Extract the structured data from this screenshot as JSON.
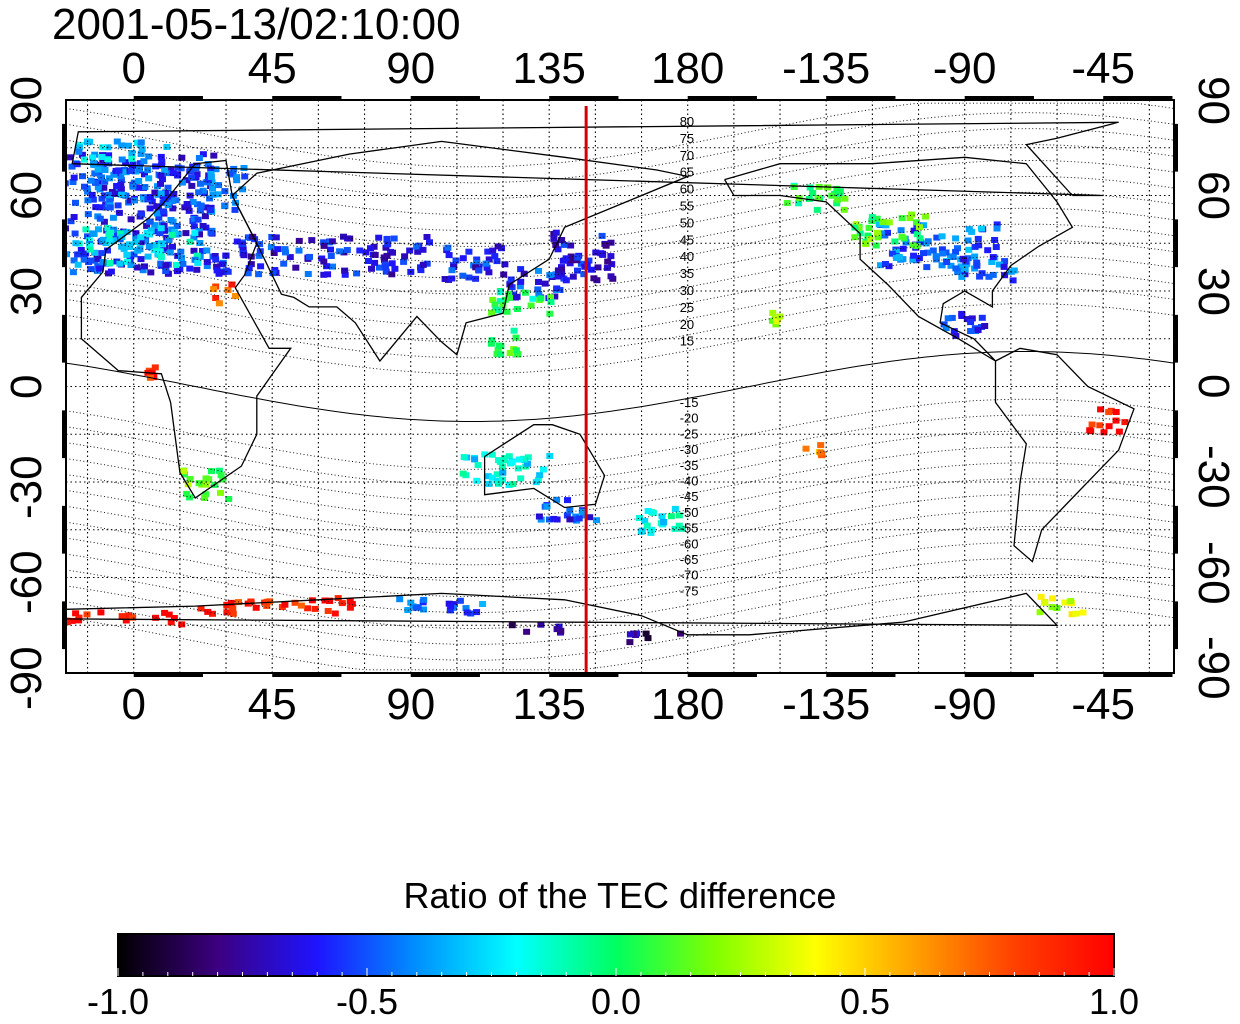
{
  "title": "2001-05-13/02:10:00",
  "map": {
    "top_axis_labels": [
      "0",
      "45",
      "90",
      "135",
      "180",
      "-135",
      "-90",
      "-45"
    ],
    "bottom_axis_labels": [
      "0",
      "45",
      "90",
      "135",
      "180",
      "-135",
      "-90",
      "-45"
    ],
    "left_axis_labels": [
      "90",
      "60",
      "30",
      "0",
      "-30",
      "-60",
      "-90"
    ],
    "right_axis_labels": [
      "90",
      "60",
      "30",
      "0",
      "-30",
      "-60",
      "-90"
    ],
    "meridian_marker_lon": 147,
    "meridian_marker_color": "#d40000",
    "magnetic_lat_labels_north": [
      "80",
      "75",
      "70",
      "65",
      "60",
      "55",
      "50",
      "45",
      "40",
      "35",
      "30",
      "25",
      "20",
      "15"
    ],
    "magnetic_lat_labels_south": [
      "-15",
      "-20",
      "-25",
      "-30",
      "-35",
      "-40",
      "-45",
      "-50",
      "-55",
      "-60",
      "-65",
      "-70",
      "-75"
    ]
  },
  "colorbar": {
    "title": "Ratio of the TEC difference",
    "ticks": [
      "-1.0",
      "-0.5",
      "0.0",
      "0.5",
      "1.0"
    ],
    "min": -1.0,
    "max": 1.0,
    "colors": [
      "#000000",
      "#3c0080",
      "#1e14ff",
      "#0090ff",
      "#00ffff",
      "#00ff60",
      "#80ff00",
      "#ffff00",
      "#ffa000",
      "#ff4000",
      "#ff0000"
    ]
  },
  "patches": [
    {
      "lon": -10,
      "lat": 55,
      "w": 70,
      "h": 38,
      "value": -0.55
    },
    {
      "lon": 0,
      "lat": 45,
      "w": 40,
      "h": 12,
      "value": -0.25
    },
    {
      "lon": 10,
      "lat": 63,
      "w": 50,
      "h": 14,
      "value": -0.5
    },
    {
      "lon": -5,
      "lat": 75,
      "w": 30,
      "h": 6,
      "value": -0.3
    },
    {
      "lon": 60,
      "lat": 42,
      "w": 70,
      "h": 12,
      "value": -0.6
    },
    {
      "lon": 110,
      "lat": 40,
      "w": 20,
      "h": 12,
      "value": -0.6
    },
    {
      "lon": 145,
      "lat": 42,
      "w": 20,
      "h": 16,
      "value": -0.65
    },
    {
      "lon": 130,
      "lat": 33,
      "w": 20,
      "h": 10,
      "value": -0.55
    },
    {
      "lon": 125,
      "lat": 27,
      "w": 20,
      "h": 8,
      "value": 0.0
    },
    {
      "lon": 120,
      "lat": 15,
      "w": 10,
      "h": 10,
      "value": 0.05
    },
    {
      "lon": 120,
      "lat": -25,
      "w": 30,
      "h": 10,
      "value": -0.2
    },
    {
      "lon": 140,
      "lat": -38,
      "w": 20,
      "h": 8,
      "value": -0.55
    },
    {
      "lon": 170,
      "lat": -42,
      "w": 15,
      "h": 10,
      "value": -0.2
    },
    {
      "lon": 22,
      "lat": -30,
      "w": 16,
      "h": 10,
      "value": 0.15
    },
    {
      "lon": -100,
      "lat": 45,
      "w": 40,
      "h": 14,
      "value": -0.45
    },
    {
      "lon": -115,
      "lat": 50,
      "w": 25,
      "h": 10,
      "value": 0.1
    },
    {
      "lon": -140,
      "lat": 60,
      "w": 20,
      "h": 8,
      "value": 0.0
    },
    {
      "lon": -85,
      "lat": 38,
      "w": 20,
      "h": 8,
      "value": -0.5
    },
    {
      "lon": -90,
      "lat": 20,
      "w": 16,
      "h": 8,
      "value": -0.55
    },
    {
      "lon": -45,
      "lat": -10,
      "w": 12,
      "h": 8,
      "value": 0.95
    },
    {
      "lon": -60,
      "lat": -68,
      "w": 16,
      "h": 6,
      "value": 0.3
    },
    {
      "lon": -5,
      "lat": -72,
      "w": 40,
      "h": 4,
      "value": 0.95
    },
    {
      "lon": 45,
      "lat": -68,
      "w": 50,
      "h": 5,
      "value": 0.9
    },
    {
      "lon": 100,
      "lat": -68,
      "w": 30,
      "h": 5,
      "value": -0.5
    },
    {
      "lon": 130,
      "lat": -75,
      "w": 20,
      "h": 3,
      "value": -0.75
    },
    {
      "lon": 170,
      "lat": -78,
      "w": 20,
      "h": 3,
      "value": -0.75
    },
    {
      "lon": 28,
      "lat": 30,
      "w": 8,
      "h": 6,
      "value": 0.8
    },
    {
      "lon": 5,
      "lat": 5,
      "w": 4,
      "h": 4,
      "value": 0.9
    },
    {
      "lon": -150,
      "lat": 22,
      "w": 8,
      "h": 6,
      "value": 0.2
    },
    {
      "lon": -140,
      "lat": -20,
      "w": 6,
      "h": 6,
      "value": 0.6
    }
  ]
}
